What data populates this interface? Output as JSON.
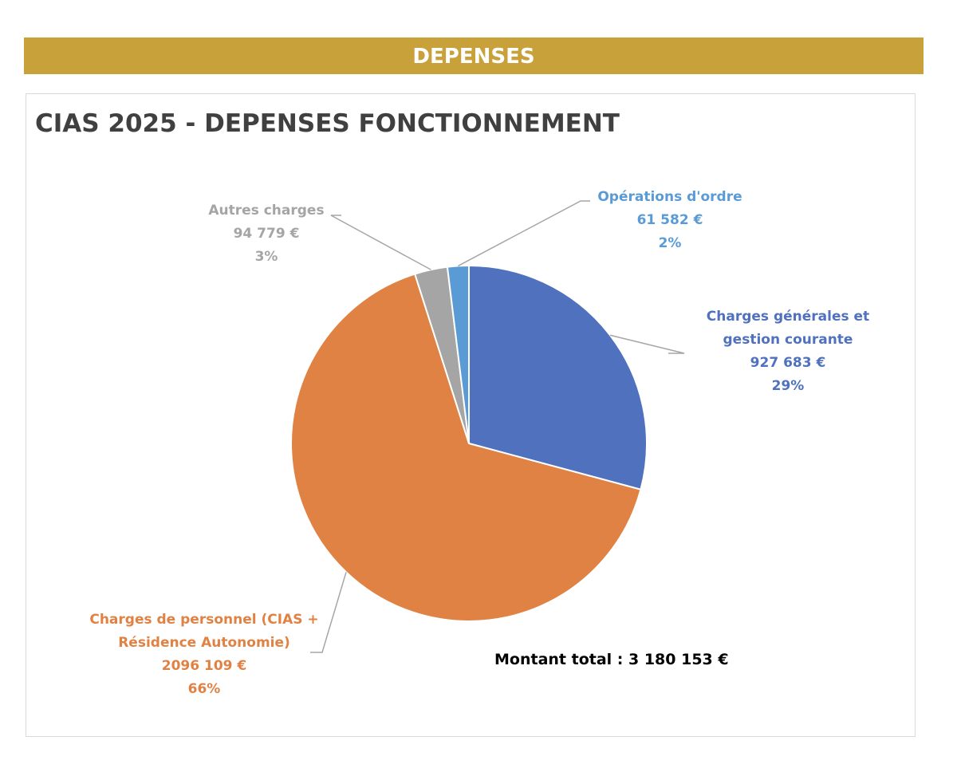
{
  "banner": {
    "title": "DEPENSES"
  },
  "colors": {
    "banner": "#c9a13a",
    "charges_generales": "#4f71be",
    "charges_personnel": "#e08243",
    "autres_charges": "#a5a5a5",
    "operations_ordre": "#5b9bd5",
    "total_text": "#000000"
  },
  "chart_data": {
    "type": "pie",
    "title": "CIAS 2025 - DEPENSES FONCTIONNEMENT",
    "slices": [
      {
        "label_lines": [
          "Charges générales et",
          "gestion courante"
        ],
        "value": 927683,
        "value_label": "927 683 €",
        "percent_label": "29%",
        "color": "#4f71be"
      },
      {
        "label_lines": [
          "Charges de personnel (CIAS +",
          "Résidence Autonomie)"
        ],
        "value": 2096109,
        "value_label": "2096 109 €",
        "percent_label": "66%",
        "color": "#e08243"
      },
      {
        "label_lines": [
          "Autres charges"
        ],
        "value": 94779,
        "value_label": "94 779 €",
        "percent_label": "3%",
        "color": "#a5a5a5"
      },
      {
        "label_lines": [
          "Opérations d'ordre"
        ],
        "value": 61582,
        "value_label": "61 582 €",
        "percent_label": "2%",
        "color": "#5b9bd5"
      }
    ],
    "annotation": "Montant total : 3 180 153 €",
    "legend": "none"
  }
}
